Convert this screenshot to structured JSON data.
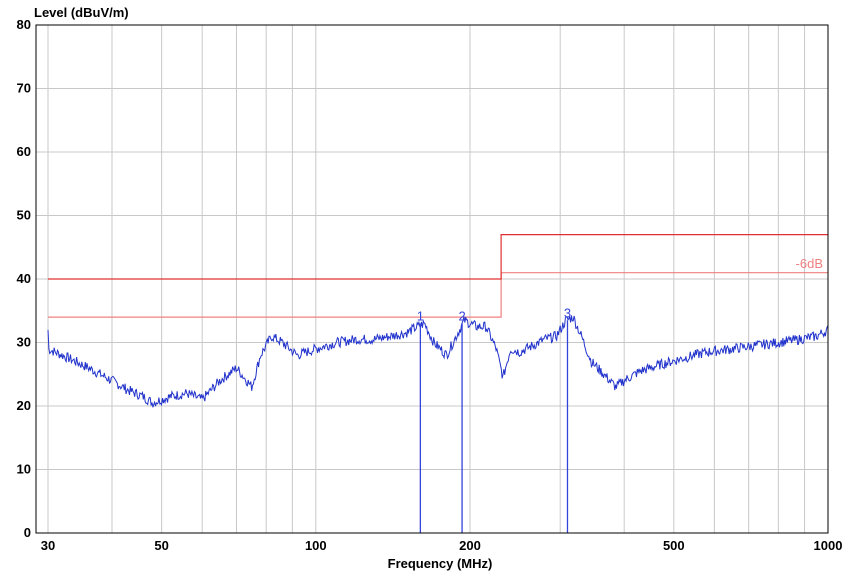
{
  "chart_data": {
    "type": "line",
    "ylabel": "Level (dBuV/m)",
    "xlabel": "Frequency (MHz)",
    "x_scale": "log",
    "xlim": [
      30,
      1000
    ],
    "ylim": [
      0,
      80
    ],
    "y_ticks": [
      0,
      10,
      20,
      30,
      40,
      50,
      60,
      70,
      80
    ],
    "x_ticks": [
      30,
      50,
      100,
      200,
      500,
      1000
    ],
    "x_minor_grid": [
      40,
      60,
      70,
      80,
      90,
      300,
      400,
      600,
      700,
      800,
      900
    ],
    "grid": true,
    "limit_line": {
      "color": "#e03030",
      "segments": [
        {
          "x": [
            30,
            230
          ],
          "y": 40
        },
        {
          "x": [
            230,
            1000
          ],
          "y": 47
        }
      ]
    },
    "offset_line": {
      "label": "-6dB",
      "color": "#f08080",
      "segments": [
        {
          "x": [
            30,
            230
          ],
          "y": 34
        },
        {
          "x": [
            230,
            1000
          ],
          "y": 41
        }
      ]
    },
    "series": [
      {
        "color": "#2233cc",
        "x": [
          30,
          33,
          36,
          40,
          43,
          46,
          48,
          52,
          56,
          60,
          65,
          70,
          75,
          78,
          82,
          86,
          92,
          100,
          110,
          120,
          130,
          140,
          150,
          158,
          163,
          170,
          180,
          188,
          195,
          200,
          206,
          215,
          225,
          232,
          240,
          250,
          265,
          280,
          295,
          308,
          318,
          330,
          345,
          365,
          385,
          400,
          430,
          470,
          520,
          580,
          650,
          720,
          800,
          880,
          950,
          1000
        ],
        "y": [
          29,
          27.5,
          26,
          24,
          22.5,
          21.5,
          20.5,
          21.5,
          22,
          21,
          24,
          26,
          23,
          28,
          31,
          30,
          28,
          29,
          30,
          30.5,
          30.5,
          31,
          31.5,
          32.5,
          33,
          30,
          28,
          31,
          33.5,
          33,
          32.5,
          32.5,
          29,
          24.5,
          29,
          28.5,
          29.5,
          30.5,
          31,
          33.5,
          34,
          31,
          27,
          25,
          23,
          24,
          25.5,
          26.5,
          27.5,
          28.5,
          29,
          29.5,
          30,
          30.5,
          31,
          32
        ]
      }
    ],
    "markers": [
      {
        "label": "1",
        "x": 160,
        "y": 33
      },
      {
        "label": "2",
        "x": 193,
        "y": 33
      },
      {
        "label": "3",
        "x": 310,
        "y": 33.5
      }
    ]
  }
}
